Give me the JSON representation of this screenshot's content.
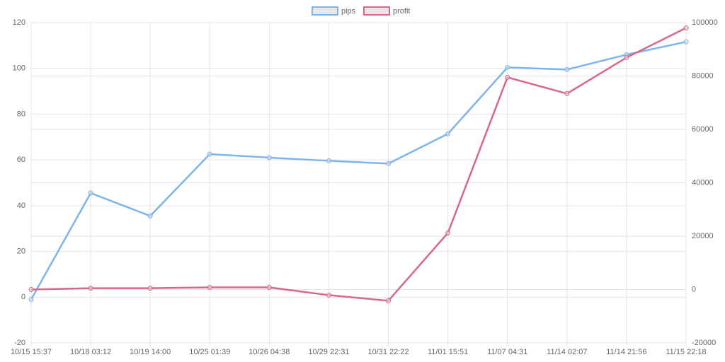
{
  "chart_data": {
    "type": "line",
    "categories": [
      "10/15 15:37",
      "10/18 03:12",
      "10/19 14:00",
      "10/25 01:39",
      "10/26 04:38",
      "10/29 22:31",
      "10/31 22:22",
      "11/01 15:51",
      "11/07 04:31",
      "11/14 02:07",
      "11/14 21:56",
      "11/15 22:18"
    ],
    "series": [
      {
        "name": "pips",
        "color": "#7cb5ec",
        "values": [
          -1,
          45.5,
          35.5,
          62.5,
          61,
          59.6,
          58.4,
          71.4,
          100.4,
          99.5,
          106,
          111.6
        ]
      },
      {
        "name": "profit",
        "color": "#d9668f",
        "axis": "y2",
        "values": [
          0,
          500,
          500,
          800,
          800,
          -2100,
          -4200,
          21200,
          79500,
          73400,
          86900,
          98000
        ]
      }
    ],
    "ylim": [
      -20,
      120
    ],
    "yticks": [
      -20,
      0,
      20,
      40,
      60,
      80,
      100,
      120
    ],
    "y2lim": [
      -20000,
      100000
    ],
    "y2ticks": [
      -20000,
      0,
      20000,
      40000,
      60000,
      80000,
      100000
    ],
    "grid": true,
    "legend": "top"
  }
}
